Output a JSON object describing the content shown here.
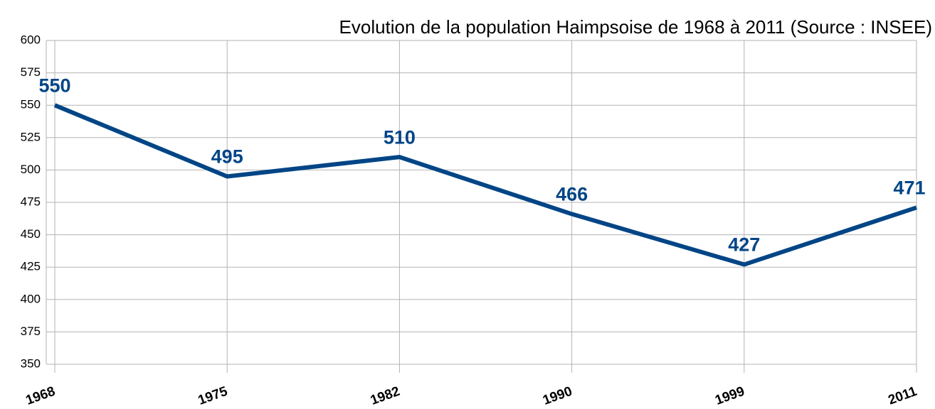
{
  "chart_data": {
    "type": "line",
    "title": "Evolution de la population Haimpsoise de 1968 à 2011 (Source : INSEE)",
    "categories": [
      "1968",
      "1975",
      "1982",
      "1990",
      "1999",
      "2011"
    ],
    "series": [
      {
        "name": "Population",
        "color": "#004586",
        "values": [
          550,
          495,
          510,
          466,
          427,
          471
        ]
      }
    ],
    "ylim": [
      350,
      600
    ],
    "yticks": [
      350,
      375,
      400,
      425,
      450,
      475,
      500,
      525,
      550,
      575,
      600
    ],
    "grid": true
  }
}
